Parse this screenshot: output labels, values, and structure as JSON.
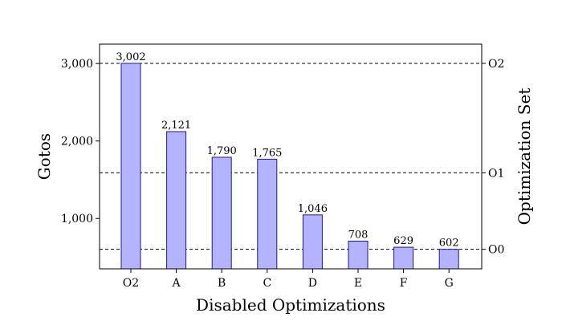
{
  "chart_data": {
    "type": "bar",
    "categories": [
      "O2",
      "A",
      "B",
      "C",
      "D",
      "E",
      "F",
      "G"
    ],
    "values": [
      3002,
      2121,
      1790,
      1765,
      1046,
      708,
      629,
      602
    ],
    "data_labels": [
      "3,002",
      "2,121",
      "1,790",
      "1,765",
      "1,046",
      "708",
      "629",
      "602"
    ],
    "title": "",
    "xlabel": "Disabled Optimizations",
    "ylabel": "Gotos",
    "ylabel_right": "Optimization Set",
    "ylim": [
      350,
      3250
    ],
    "yticks": [
      1000,
      2000,
      3000
    ],
    "ytick_labels": [
      "1,000",
      "2,000",
      "3,000"
    ],
    "reference_lines": [
      {
        "name": "O2",
        "value": 3002
      },
      {
        "name": "O1",
        "value": 1590
      },
      {
        "name": "O0",
        "value": 602
      }
    ],
    "grid": false,
    "colors": {
      "bar_fill": "#b3b3ff",
      "bar_stroke": "#1a1a99"
    }
  }
}
